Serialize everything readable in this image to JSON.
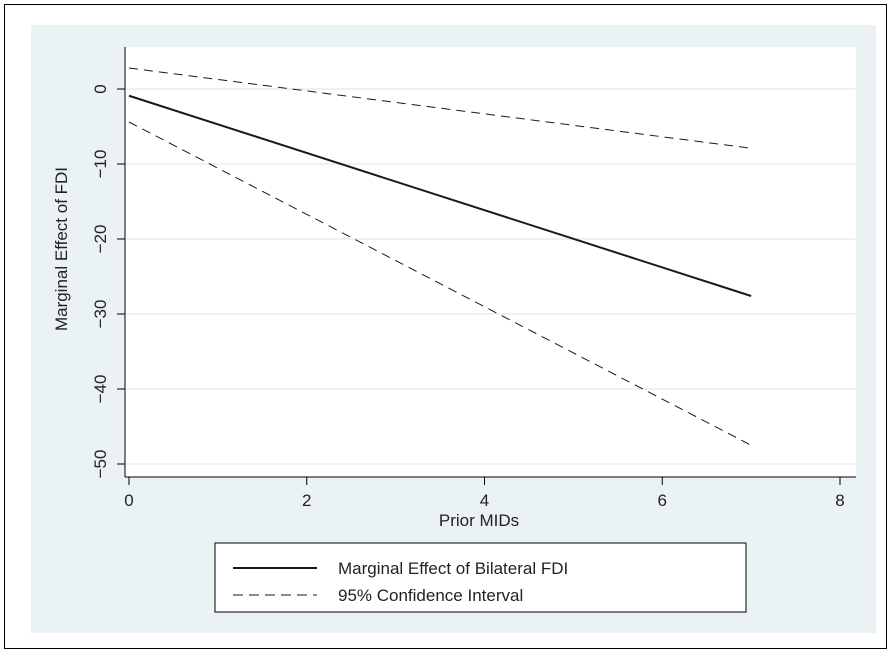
{
  "chart_data": {
    "type": "line",
    "title": "",
    "xlabel": "Prior MIDs",
    "ylabel": "Marginal Effect of FDI",
    "xlim": [
      0,
      8
    ],
    "ylim": [
      -50,
      3
    ],
    "x_ticks": [
      0,
      2,
      4,
      6,
      8
    ],
    "y_ticks": [
      0,
      -10,
      -20,
      -30,
      -40,
      -50
    ],
    "grid": "horizontal",
    "legend_position": "bottom",
    "series": [
      {
        "name": "Marginal Effect of Bilateral FDI",
        "style": "solid",
        "x": [
          0,
          7
        ],
        "y": [
          -0.9,
          -27.6
        ]
      },
      {
        "name": "95% Confidence Interval",
        "style": "dashed",
        "x": [
          0,
          7
        ],
        "y": [
          2.8,
          -7.9
        ]
      },
      {
        "style": "dashed",
        "x": [
          0,
          7
        ],
        "y": [
          -4.4,
          -47.5
        ]
      }
    ]
  },
  "colors": {
    "outer_background": "#eaf2f3",
    "plot_background": "#ffffff",
    "grid": "#eaf2f3",
    "line": "#1a1a1a"
  }
}
